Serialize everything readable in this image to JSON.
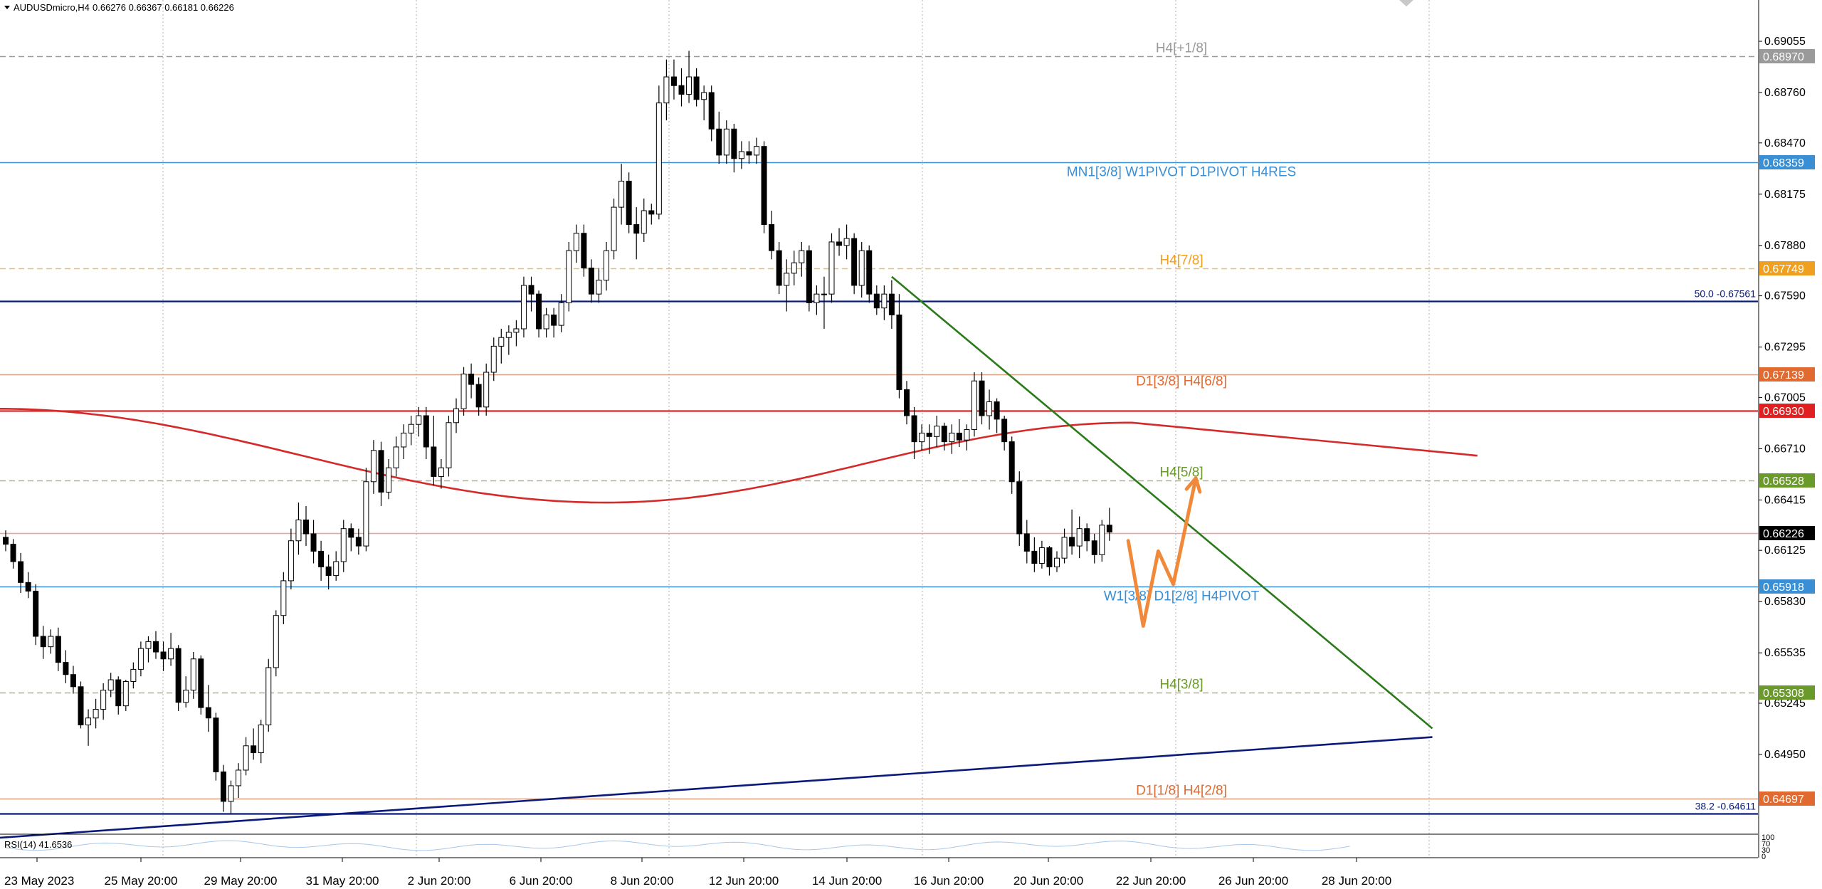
{
  "header": {
    "symbol": "AUDUSDmicro,H4",
    "ohlc": "0.66276 0.66367 0.66181 0.66226"
  },
  "indicator": {
    "label": "RSI(14) 41.6536",
    "scale": [
      "100",
      "70",
      "30",
      "0"
    ]
  },
  "colors": {
    "bull_candle": "#ffffff",
    "bear_candle": "#000000",
    "ma": "#d42a2a",
    "pivot_blue": "#3a8fd4",
    "navy": "#0a1a7a",
    "green_trend": "#2a7a1a",
    "projection": "#f08a3a",
    "grid": "#b0b0b0"
  },
  "chart_data": {
    "type": "candlestick",
    "price_axis": {
      "min": 0.6435,
      "max": 0.6915,
      "ticks": [
        "0.69055",
        "0.68760",
        "0.68470",
        "0.68175",
        "0.67880",
        "0.67590",
        "0.67295",
        "0.67005",
        "0.66710",
        "0.66415",
        "0.66125",
        "0.65830",
        "0.65535",
        "0.65245",
        "0.64950"
      ]
    },
    "time_labels": [
      "23 May 2023",
      "25 May 20:00",
      "29 May 20:00",
      "31 May 20:00",
      "2 Jun 20:00",
      "6 Jun 20:00",
      "8 Jun 20:00",
      "12 Jun 20:00",
      "14 Jun 20:00",
      "16 Jun 20:00",
      "20 Jun 20:00",
      "22 Jun 20:00",
      "26 Jun 20:00",
      "28 Jun 20:00"
    ],
    "candles": [
      [
        0.662,
        0.6624,
        0.6612,
        0.6616
      ],
      [
        0.6616,
        0.6619,
        0.6602,
        0.6606
      ],
      [
        0.6606,
        0.6611,
        0.6588,
        0.6594
      ],
      [
        0.6594,
        0.66,
        0.6585,
        0.6589
      ],
      [
        0.6589,
        0.6593,
        0.6558,
        0.6563
      ],
      [
        0.6563,
        0.6569,
        0.655,
        0.6557
      ],
      [
        0.6557,
        0.6567,
        0.6553,
        0.6563
      ],
      [
        0.6563,
        0.6568,
        0.6543,
        0.6548
      ],
      [
        0.6548,
        0.6555,
        0.6536,
        0.6541
      ],
      [
        0.6541,
        0.6546,
        0.653,
        0.6534
      ],
      [
        0.6534,
        0.6537,
        0.651,
        0.6512
      ],
      [
        0.6512,
        0.6521,
        0.65,
        0.6516
      ],
      [
        0.6516,
        0.6527,
        0.651,
        0.6521
      ],
      [
        0.6521,
        0.6536,
        0.6515,
        0.6532
      ],
      [
        0.6532,
        0.6542,
        0.6528,
        0.6538
      ],
      [
        0.6538,
        0.654,
        0.6518,
        0.6523
      ],
      [
        0.6523,
        0.6538,
        0.652,
        0.6537
      ],
      [
        0.6537,
        0.6548,
        0.6533,
        0.6544
      ],
      [
        0.6544,
        0.656,
        0.654,
        0.6556
      ],
      [
        0.6556,
        0.6563,
        0.6548,
        0.656
      ],
      [
        0.656,
        0.6566,
        0.655,
        0.6554
      ],
      [
        0.6554,
        0.656,
        0.6543,
        0.655
      ],
      [
        0.655,
        0.6565,
        0.6546,
        0.6556
      ],
      [
        0.6556,
        0.6558,
        0.652,
        0.6525
      ],
      [
        0.6525,
        0.654,
        0.6522,
        0.6532
      ],
      [
        0.6532,
        0.6554,
        0.6527,
        0.655
      ],
      [
        0.655,
        0.6552,
        0.6518,
        0.6522
      ],
      [
        0.6522,
        0.6535,
        0.6508,
        0.6516
      ],
      [
        0.6516,
        0.6519,
        0.648,
        0.6485
      ],
      [
        0.6485,
        0.6489,
        0.6462,
        0.6468
      ],
      [
        0.6468,
        0.648,
        0.6461,
        0.6477
      ],
      [
        0.6477,
        0.649,
        0.647,
        0.6486
      ],
      [
        0.6486,
        0.6505,
        0.6483,
        0.65
      ],
      [
        0.65,
        0.651,
        0.6492,
        0.6496
      ],
      [
        0.6496,
        0.6515,
        0.649,
        0.6512
      ],
      [
        0.6512,
        0.655,
        0.6508,
        0.6545
      ],
      [
        0.6545,
        0.6578,
        0.654,
        0.6575
      ],
      [
        0.6575,
        0.66,
        0.657,
        0.6595
      ],
      [
        0.6595,
        0.6625,
        0.659,
        0.6618
      ],
      [
        0.6618,
        0.664,
        0.661,
        0.663
      ],
      [
        0.663,
        0.6638,
        0.6615,
        0.6622
      ],
      [
        0.6622,
        0.663,
        0.6605,
        0.6612
      ],
      [
        0.6612,
        0.6618,
        0.6595,
        0.6603
      ],
      [
        0.6603,
        0.661,
        0.659,
        0.6598
      ],
      [
        0.6598,
        0.6612,
        0.6595,
        0.6606
      ],
      [
        0.6606,
        0.663,
        0.66,
        0.6625
      ],
      [
        0.6625,
        0.6628,
        0.6612,
        0.662
      ],
      [
        0.662,
        0.6625,
        0.661,
        0.6615
      ],
      [
        0.6615,
        0.666,
        0.6612,
        0.6652
      ],
      [
        0.6652,
        0.6676,
        0.6645,
        0.667
      ],
      [
        0.667,
        0.6675,
        0.6638,
        0.6646
      ],
      [
        0.6646,
        0.6665,
        0.6642,
        0.666
      ],
      [
        0.666,
        0.6678,
        0.6655,
        0.6672
      ],
      [
        0.6672,
        0.6685,
        0.6665,
        0.668
      ],
      [
        0.668,
        0.669,
        0.6673,
        0.6685
      ],
      [
        0.6685,
        0.6695,
        0.6678,
        0.669
      ],
      [
        0.669,
        0.6695,
        0.6665,
        0.6672
      ],
      [
        0.6672,
        0.669,
        0.665,
        0.6655
      ],
      [
        0.6655,
        0.6665,
        0.6648,
        0.666
      ],
      [
        0.666,
        0.669,
        0.6655,
        0.6686
      ],
      [
        0.6686,
        0.67,
        0.668,
        0.6694
      ],
      [
        0.6694,
        0.6718,
        0.669,
        0.6714
      ],
      [
        0.6714,
        0.672,
        0.67,
        0.6708
      ],
      [
        0.6708,
        0.6712,
        0.669,
        0.6695
      ],
      [
        0.6695,
        0.672,
        0.669,
        0.6715
      ],
      [
        0.6715,
        0.6735,
        0.671,
        0.673
      ],
      [
        0.673,
        0.674,
        0.672,
        0.6735
      ],
      [
        0.6735,
        0.6742,
        0.6725,
        0.6738
      ],
      [
        0.6738,
        0.6745,
        0.673,
        0.674
      ],
      [
        0.674,
        0.677,
        0.6735,
        0.6765
      ],
      [
        0.6765,
        0.677,
        0.675,
        0.676
      ],
      [
        0.676,
        0.6762,
        0.6735,
        0.674
      ],
      [
        0.674,
        0.6752,
        0.6735,
        0.6748
      ],
      [
        0.6748,
        0.6752,
        0.6735,
        0.6742
      ],
      [
        0.6742,
        0.676,
        0.6738,
        0.6755
      ],
      [
        0.6755,
        0.679,
        0.675,
        0.6785
      ],
      [
        0.6785,
        0.68,
        0.6778,
        0.6795
      ],
      [
        0.6795,
        0.68,
        0.677,
        0.6775
      ],
      [
        0.6775,
        0.678,
        0.6755,
        0.676
      ],
      [
        0.676,
        0.6775,
        0.6755,
        0.6768
      ],
      [
        0.6768,
        0.679,
        0.6762,
        0.6785
      ],
      [
        0.6785,
        0.6815,
        0.678,
        0.681
      ],
      [
        0.681,
        0.6835,
        0.68,
        0.6825
      ],
      [
        0.6825,
        0.683,
        0.6795,
        0.68
      ],
      [
        0.68,
        0.681,
        0.678,
        0.6795
      ],
      [
        0.6795,
        0.6815,
        0.679,
        0.6808
      ],
      [
        0.6808,
        0.6812,
        0.68,
        0.6806
      ],
      [
        0.6806,
        0.688,
        0.6803,
        0.687
      ],
      [
        0.687,
        0.6895,
        0.686,
        0.6885
      ],
      [
        0.6885,
        0.6895,
        0.6872,
        0.688
      ],
      [
        0.688,
        0.689,
        0.6868,
        0.6875
      ],
      [
        0.6875,
        0.69,
        0.687,
        0.6885
      ],
      [
        0.6885,
        0.689,
        0.6868,
        0.6872
      ],
      [
        0.6872,
        0.688,
        0.686,
        0.6876
      ],
      [
        0.6876,
        0.688,
        0.6848,
        0.6855
      ],
      [
        0.6855,
        0.6865,
        0.6835,
        0.684
      ],
      [
        0.684,
        0.686,
        0.6835,
        0.6855
      ],
      [
        0.6855,
        0.6858,
        0.683,
        0.6838
      ],
      [
        0.6838,
        0.6848,
        0.6832,
        0.6842
      ],
      [
        0.6842,
        0.6848,
        0.6835,
        0.684
      ],
      [
        0.684,
        0.685,
        0.6835,
        0.6845
      ],
      [
        0.6845,
        0.6848,
        0.6795,
        0.68
      ],
      [
        0.68,
        0.6808,
        0.678,
        0.6785
      ],
      [
        0.6785,
        0.679,
        0.676,
        0.6765
      ],
      [
        0.6765,
        0.678,
        0.675,
        0.6772
      ],
      [
        0.6772,
        0.6785,
        0.6765,
        0.6778
      ],
      [
        0.6778,
        0.679,
        0.677,
        0.6785
      ],
      [
        0.6785,
        0.6788,
        0.675,
        0.6755
      ],
      [
        0.6755,
        0.6765,
        0.6748,
        0.676
      ],
      [
        0.676,
        0.677,
        0.674,
        0.676
      ],
      [
        0.676,
        0.6795,
        0.6755,
        0.679
      ],
      [
        0.679,
        0.6798,
        0.6782,
        0.6788
      ],
      [
        0.6788,
        0.68,
        0.678,
        0.6792
      ],
      [
        0.6792,
        0.6795,
        0.676,
        0.6765
      ],
      [
        0.6765,
        0.679,
        0.6758,
        0.6785
      ],
      [
        0.6785,
        0.6788,
        0.6755,
        0.676
      ],
      [
        0.676,
        0.6765,
        0.6748,
        0.6752
      ],
      [
        0.6752,
        0.6765,
        0.6745,
        0.676
      ],
      [
        0.676,
        0.6768,
        0.674,
        0.6748
      ],
      [
        0.6748,
        0.676,
        0.67,
        0.6705
      ],
      [
        0.6705,
        0.671,
        0.6685,
        0.669
      ],
      [
        0.669,
        0.6695,
        0.6665,
        0.6675
      ],
      [
        0.6675,
        0.6685,
        0.667,
        0.668
      ],
      [
        0.668,
        0.6685,
        0.6668,
        0.6678
      ],
      [
        0.6678,
        0.669,
        0.6672,
        0.6684
      ],
      [
        0.6684,
        0.6686,
        0.667,
        0.6675
      ],
      [
        0.6675,
        0.6685,
        0.6668,
        0.668
      ],
      [
        0.668,
        0.6688,
        0.6672,
        0.6676
      ],
      [
        0.6676,
        0.6685,
        0.667,
        0.6682
      ],
      [
        0.6682,
        0.6715,
        0.6678,
        0.671
      ],
      [
        0.671,
        0.6715,
        0.6685,
        0.669
      ],
      [
        0.669,
        0.6705,
        0.6682,
        0.6698
      ],
      [
        0.6698,
        0.67,
        0.668,
        0.6688
      ],
      [
        0.6688,
        0.669,
        0.667,
        0.6675
      ],
      [
        0.6675,
        0.6678,
        0.6645,
        0.6652
      ],
      [
        0.6652,
        0.6658,
        0.6615,
        0.6622
      ],
      [
        0.6622,
        0.663,
        0.6605,
        0.6612
      ],
      [
        0.6612,
        0.662,
        0.66,
        0.6605
      ],
      [
        0.6605,
        0.6618,
        0.6602,
        0.6614
      ],
      [
        0.6614,
        0.6615,
        0.6598,
        0.6603
      ],
      [
        0.6603,
        0.6612,
        0.66,
        0.6608
      ],
      [
        0.6608,
        0.6625,
        0.6605,
        0.662
      ],
      [
        0.662,
        0.6636,
        0.661,
        0.6615
      ],
      [
        0.6615,
        0.6632,
        0.6608,
        0.6625
      ],
      [
        0.6625,
        0.6628,
        0.6612,
        0.6618
      ],
      [
        0.6618,
        0.6622,
        0.6605,
        0.661
      ],
      [
        0.661,
        0.663,
        0.6606,
        0.6627
      ],
      [
        0.6627,
        0.6637,
        0.6618,
        0.6623
      ]
    ],
    "moving_average": {
      "from": 0.6694,
      "dip": 0.664,
      "peak": 0.6686,
      "to": 0.6667
    },
    "levels": [
      {
        "price": 0.6897,
        "label": "H4[+1/8]",
        "tag": "0.68970",
        "color": "#9a9a9a",
        "tag_bg": "#9a9a9a",
        "style": "dash"
      },
      {
        "price": 0.68359,
        "label": "MN1[3/8] W1PIVOT D1PIVOT H4RES",
        "tag": "0.68359",
        "color": "#3a8fd4",
        "tag_bg": "#3a8fd4",
        "style": "solid"
      },
      {
        "price": 0.67749,
        "label": "H4[7/8]",
        "tag": "0.67749",
        "color": "#e8c070",
        "tag_bg": "#f0a020",
        "style": "dash"
      },
      {
        "price": 0.67561,
        "label": "50.0 -0.67561",
        "tag": "",
        "color": "#0a1a7a",
        "tag_bg": "",
        "style": "solid_thick"
      },
      {
        "price": 0.67139,
        "label": "D1[3/8] H4[6/8]",
        "tag": "0.67139",
        "color": "#d8a080",
        "tag_bg": "#e06a30",
        "style": "solid"
      },
      {
        "price": 0.6693,
        "label": "",
        "tag": "0.66930",
        "color": "#d42a2a",
        "tag_bg": "#e02020",
        "style": "solid_thick"
      },
      {
        "price": 0.66528,
        "label": "H4[5/8]",
        "tag": "0.66528",
        "color": "#b0b090",
        "tag_bg": "#6a9a2a",
        "style": "dash"
      },
      {
        "price": 0.66226,
        "label": "",
        "tag": "0.66226",
        "color": "#e8a0a0",
        "tag_bg": "#000000",
        "style": "solid"
      },
      {
        "price": 0.65918,
        "label": "W1[3/8] D1[2/8] H4PIVOT",
        "tag": "0.65918",
        "color": "#3a8fd4",
        "tag_bg": "#3a8fd4",
        "style": "solid"
      },
      {
        "price": 0.65308,
        "label": "H4[3/8]",
        "tag": "0.65308",
        "color": "#b0b090",
        "tag_bg": "#6a9a2a",
        "style": "dash"
      },
      {
        "price": 0.64697,
        "label": "D1[1/8] H4[2/8]",
        "tag": "0.64697",
        "color": "#d8a080",
        "tag_bg": "#e06a30",
        "style": "solid"
      },
      {
        "price": 0.64611,
        "label": "38.2 -0.64611",
        "tag": "",
        "color": "#0a1a7a",
        "tag_bg": "",
        "style": "solid_thick"
      }
    ],
    "trendlines": [
      {
        "name": "green-downtrend",
        "color": "#2a7a1a",
        "from": {
          "bar": 118,
          "price": 0.677
        },
        "to": {
          "bar": 190,
          "price": 0.651
        }
      },
      {
        "name": "navy-uptrend",
        "color": "#0a1a7a",
        "from": {
          "bar": -1,
          "price": 0.6447
        },
        "to": {
          "bar": 190,
          "price": 0.6505
        }
      }
    ],
    "projection": [
      [
        149.5,
        0.6618
      ],
      [
        151.5,
        0.6569
      ],
      [
        153.5,
        0.6612
      ],
      [
        155.5,
        0.6593
      ],
      [
        158.5,
        0.6654
      ]
    ]
  }
}
